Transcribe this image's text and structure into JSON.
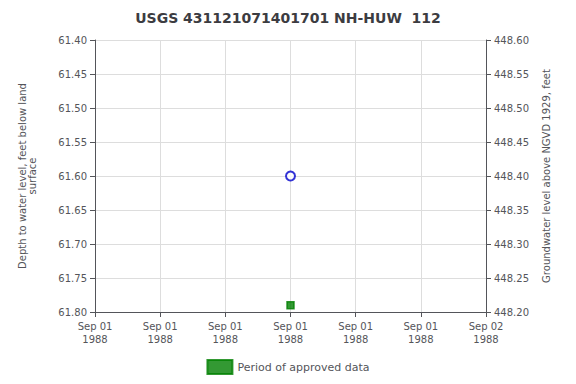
{
  "chart_data": {
    "type": "scatter",
    "title": "USGS 431121071401701 NH-HUW  112",
    "categories": [
      "Sep 01\n1988",
      "Sep 01\n1988",
      "Sep 01\n1988",
      "Sep 01\n1988",
      "Sep 01\n1988",
      "Sep 01\n1988",
      "Sep 02\n1988"
    ],
    "ylabel": "Depth to water level, feet below land\nsurface",
    "y2label": "Groundwater level above NGVD 1929, feet",
    "ylim": [
      61.8,
      61.4
    ],
    "yticks": [
      {
        "value": 61.4,
        "label": "61.40"
      },
      61.45,
      {
        "value": 61.5,
        "label": "61.50"
      },
      61.55,
      {
        "value": 61.6,
        "label": "61.60"
      },
      61.65,
      {
        "value": 61.7,
        "label": "61.70"
      },
      61.75,
      {
        "value": 61.8,
        "label": "61.80"
      }
    ],
    "y2lim": [
      448.2,
      448.6
    ],
    "y2ticks": [
      {
        "value": 448.6,
        "label": "448.60"
      },
      448.55,
      {
        "value": 448.5,
        "label": "448.50"
      },
      448.45,
      {
        "value": 448.4,
        "label": "448.40"
      },
      448.35,
      {
        "value": 448.3,
        "label": "448.30"
      },
      448.25,
      {
        "value": 448.2,
        "label": "448.20"
      }
    ],
    "series": [
      {
        "values": [
          null,
          null,
          null,
          61.6,
          null,
          null,
          null
        ],
        "color": "#0000cc",
        "marker": "open_circle"
      },
      {
        "name": "Period of approved data",
        "values": [
          null,
          null,
          null,
          61.79,
          null,
          null,
          null
        ],
        "color": "#008000",
        "marker": "square",
        "line_style": "solid"
      }
    ],
    "grid": true,
    "legend": "bottom"
  }
}
